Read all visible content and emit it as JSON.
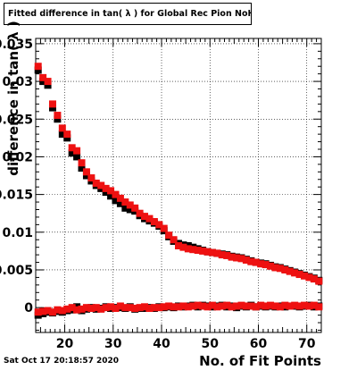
{
  "title": "Fitted difference in tan( λ ) for Global Rec Pion NoHits",
  "timestamp": "Sat Oct 17 20:18:57 2020",
  "chart_data": {
    "type": "scatter",
    "title": "Fitted difference in tan( λ ) for Global Rec Pion NoHits",
    "xlabel": "No. of Fit Points",
    "ylabel": "difference in tan( λ )",
    "xlim": [
      14,
      73
    ],
    "ylim": [
      -0.0033,
      0.0357
    ],
    "grid": true,
    "xticks": [
      20,
      30,
      40,
      50,
      60,
      70
    ],
    "yticks": [
      0,
      0.005,
      0.01,
      0.015,
      0.02,
      0.025,
      0.03,
      0.035
    ],
    "ytick_labels": [
      "0",
      "0.005",
      "0.01",
      "0.015",
      "0.02",
      "0.025",
      "0.03",
      "0.035"
    ],
    "series": [
      {
        "color": "#000000",
        "points": [
          [
            14.5,
            0.0315
          ],
          [
            15.5,
            0.03
          ],
          [
            16.5,
            0.0295
          ],
          [
            17.5,
            0.0265
          ],
          [
            18.5,
            0.025
          ],
          [
            19.5,
            0.023
          ],
          [
            20.5,
            0.0225
          ],
          [
            21.5,
            0.0205
          ],
          [
            22.5,
            0.02
          ],
          [
            23.5,
            0.0185
          ],
          [
            24.5,
            0.0175
          ],
          [
            25.5,
            0.0168
          ],
          [
            26.5,
            0.0162
          ],
          [
            27.5,
            0.0158
          ],
          [
            28.5,
            0.0153
          ],
          [
            29.5,
            0.0148
          ],
          [
            30.5,
            0.0142
          ],
          [
            31.5,
            0.0138
          ],
          [
            32.5,
            0.0132
          ],
          [
            33.5,
            0.013
          ],
          [
            34.5,
            0.0128
          ],
          [
            35.5,
            0.0122
          ],
          [
            36.5,
            0.0118
          ],
          [
            37.5,
            0.0115
          ],
          [
            38.5,
            0.0112
          ],
          [
            39.5,
            0.0108
          ],
          [
            40.5,
            0.0102
          ],
          [
            41.5,
            0.0094
          ],
          [
            42.5,
            0.0088
          ],
          [
            43.5,
            0.0085
          ],
          [
            44.5,
            0.0083
          ],
          [
            45.5,
            0.0082
          ],
          [
            46.5,
            0.008
          ],
          [
            47.5,
            0.0078
          ],
          [
            48.5,
            0.0076
          ],
          [
            49.5,
            0.0074
          ],
          [
            50.5,
            0.0073
          ],
          [
            51.5,
            0.0072
          ],
          [
            52.5,
            0.0071
          ],
          [
            53.5,
            0.007
          ],
          [
            54.5,
            0.0068
          ],
          [
            55.5,
            0.0067
          ],
          [
            56.5,
            0.0066
          ],
          [
            57.5,
            0.0064
          ],
          [
            58.5,
            0.0062
          ],
          [
            59.5,
            0.006
          ],
          [
            60.5,
            0.0059
          ],
          [
            61.5,
            0.0058
          ],
          [
            62.5,
            0.0056
          ],
          [
            63.5,
            0.0054
          ],
          [
            64.5,
            0.0053
          ],
          [
            65.5,
            0.0051
          ],
          [
            66.5,
            0.0049
          ],
          [
            67.5,
            0.0047
          ],
          [
            68.5,
            0.0045
          ],
          [
            69.5,
            0.0043
          ],
          [
            70.5,
            0.0041
          ],
          [
            71.5,
            0.0039
          ],
          [
            72.5,
            0.0036
          ]
        ]
      },
      {
        "color": "#ee1111",
        "points": [
          [
            14.5,
            0.032
          ],
          [
            15.5,
            0.0305
          ],
          [
            16.5,
            0.03
          ],
          [
            17.5,
            0.027
          ],
          [
            18.5,
            0.0255
          ],
          [
            19.5,
            0.0238
          ],
          [
            20.5,
            0.023
          ],
          [
            21.5,
            0.0212
          ],
          [
            22.5,
            0.0208
          ],
          [
            23.5,
            0.0192
          ],
          [
            24.5,
            0.018
          ],
          [
            25.5,
            0.0172
          ],
          [
            26.5,
            0.0165
          ],
          [
            27.5,
            0.0162
          ],
          [
            28.5,
            0.0158
          ],
          [
            29.5,
            0.0155
          ],
          [
            30.5,
            0.015
          ],
          [
            31.5,
            0.0145
          ],
          [
            32.5,
            0.014
          ],
          [
            33.5,
            0.0136
          ],
          [
            34.5,
            0.0132
          ],
          [
            35.5,
            0.0125
          ],
          [
            36.5,
            0.0121
          ],
          [
            37.5,
            0.0118
          ],
          [
            38.5,
            0.0114
          ],
          [
            39.5,
            0.011
          ],
          [
            40.5,
            0.0105
          ],
          [
            41.5,
            0.0096
          ],
          [
            42.5,
            0.009
          ],
          [
            43.5,
            0.0082
          ],
          [
            44.5,
            0.008
          ],
          [
            45.5,
            0.0078
          ],
          [
            46.5,
            0.0077
          ],
          [
            47.5,
            0.0076
          ],
          [
            48.5,
            0.0075
          ],
          [
            49.5,
            0.0074
          ],
          [
            50.5,
            0.0073
          ],
          [
            51.5,
            0.0072
          ],
          [
            52.5,
            0.007
          ],
          [
            53.5,
            0.0069
          ],
          [
            54.5,
            0.0067
          ],
          [
            55.5,
            0.0066
          ],
          [
            56.5,
            0.0065
          ],
          [
            57.5,
            0.0063
          ],
          [
            58.5,
            0.0061
          ],
          [
            59.5,
            0.006
          ],
          [
            60.5,
            0.0058
          ],
          [
            61.5,
            0.0057
          ],
          [
            62.5,
            0.0055
          ],
          [
            63.5,
            0.0053
          ],
          [
            64.5,
            0.0052
          ],
          [
            65.5,
            0.005
          ],
          [
            66.5,
            0.0048
          ],
          [
            67.5,
            0.0046
          ],
          [
            68.5,
            0.0044
          ],
          [
            69.5,
            0.0042
          ],
          [
            70.5,
            0.004
          ],
          [
            71.5,
            0.0038
          ],
          [
            72.5,
            0.0035
          ]
        ]
      },
      {
        "color": "#000000",
        "points": [
          [
            14.5,
            -0.001
          ],
          [
            15.5,
            -0.0008
          ],
          [
            16.5,
            -0.0006
          ],
          [
            17.5,
            -0.0007
          ],
          [
            18.5,
            -0.0005
          ],
          [
            19.5,
            -0.0006
          ],
          [
            20.5,
            -0.0004
          ],
          [
            21.5,
            -0.0003
          ],
          [
            22.5,
            0.0001
          ],
          [
            23.5,
            -0.0004
          ],
          [
            24.5,
            -0.0002
          ],
          [
            25.5,
            0.0
          ],
          [
            26.5,
            -0.0002
          ],
          [
            27.5,
            -0.0001
          ],
          [
            28.5,
            0.0001
          ],
          [
            29.5,
            -0.0001
          ],
          [
            30.5,
            0.0
          ],
          [
            31.5,
            0.0
          ],
          [
            32.5,
            -0.0001
          ],
          [
            33.5,
            0.0001
          ],
          [
            34.5,
            -0.0002
          ],
          [
            35.5,
            -0.0001
          ],
          [
            36.5,
            -0.0001
          ],
          [
            37.5,
            0.0
          ],
          [
            38.5,
            -0.0001
          ],
          [
            39.5,
            0.0001
          ],
          [
            40.5,
            0.0
          ],
          [
            41.5,
            0.0001
          ],
          [
            42.5,
            0.0
          ],
          [
            43.5,
            0.0002
          ],
          [
            44.5,
            0.0001
          ],
          [
            45.5,
            0.0002
          ],
          [
            46.5,
            0.0003
          ],
          [
            47.5,
            0.0001
          ],
          [
            48.5,
            0.0003
          ],
          [
            49.5,
            0.0002
          ],
          [
            50.5,
            0.0001
          ],
          [
            51.5,
            0.0002
          ],
          [
            52.5,
            0.0003
          ],
          [
            53.5,
            0.0001
          ],
          [
            54.5,
            0.0002
          ],
          [
            55.5,
            0.0
          ],
          [
            56.5,
            0.0002
          ],
          [
            57.5,
            0.0001
          ],
          [
            58.5,
            0.0003
          ],
          [
            59.5,
            0.0001
          ],
          [
            60.5,
            0.0002
          ],
          [
            61.5,
            0.0001
          ],
          [
            62.5,
            0.0002
          ],
          [
            63.5,
            0.0001
          ],
          [
            64.5,
            0.0002
          ],
          [
            65.5,
            0.0001
          ],
          [
            66.5,
            0.0002
          ],
          [
            67.5,
            0.0002
          ],
          [
            68.5,
            0.0001
          ],
          [
            69.5,
            0.0002
          ],
          [
            70.5,
            0.0003
          ],
          [
            71.5,
            0.0001
          ],
          [
            72.5,
            0.0002
          ]
        ]
      },
      {
        "color": "#ee1111",
        "points": [
          [
            14.5,
            -0.0006
          ],
          [
            15.5,
            -0.0005
          ],
          [
            16.5,
            -0.0004
          ],
          [
            17.5,
            -0.0006
          ],
          [
            18.5,
            -0.0003
          ],
          [
            19.5,
            -0.0004
          ],
          [
            20.5,
            -0.0002
          ],
          [
            21.5,
            0.0
          ],
          [
            22.5,
            -0.0003
          ],
          [
            23.5,
            -0.0002
          ],
          [
            24.5,
            0.0
          ],
          [
            25.5,
            -0.0001
          ],
          [
            26.5,
            0.0
          ],
          [
            27.5,
            -0.0002
          ],
          [
            28.5,
            0.0
          ],
          [
            29.5,
            0.0001
          ],
          [
            30.5,
            -0.0001
          ],
          [
            31.5,
            0.0002
          ],
          [
            32.5,
            0.0
          ],
          [
            33.5,
            0.0
          ],
          [
            34.5,
            -0.0001
          ],
          [
            35.5,
            0.0
          ],
          [
            36.5,
            0.0001
          ],
          [
            37.5,
            -0.0001
          ],
          [
            38.5,
            0.0
          ],
          [
            39.5,
            0.0
          ],
          [
            40.5,
            0.0001
          ],
          [
            41.5,
            0.0002
          ],
          [
            42.5,
            0.0001
          ],
          [
            43.5,
            0.0001
          ],
          [
            44.5,
            0.0002
          ],
          [
            45.5,
            0.0001
          ],
          [
            46.5,
            0.0002
          ],
          [
            47.5,
            0.0003
          ],
          [
            48.5,
            0.0002
          ],
          [
            49.5,
            0.0001
          ],
          [
            50.5,
            0.0003
          ],
          [
            51.5,
            0.0001
          ],
          [
            52.5,
            0.0002
          ],
          [
            53.5,
            0.0003
          ],
          [
            54.5,
            0.0001
          ],
          [
            55.5,
            0.0002
          ],
          [
            56.5,
            0.0003
          ],
          [
            57.5,
            0.0002
          ],
          [
            58.5,
            0.0002
          ],
          [
            59.5,
            0.0001
          ],
          [
            60.5,
            0.0003
          ],
          [
            61.5,
            0.0002
          ],
          [
            62.5,
            0.0003
          ],
          [
            63.5,
            0.0002
          ],
          [
            64.5,
            0.0001
          ],
          [
            65.5,
            0.0003
          ],
          [
            66.5,
            0.0002
          ],
          [
            67.5,
            0.0003
          ],
          [
            68.5,
            0.0002
          ],
          [
            69.5,
            0.0003
          ],
          [
            70.5,
            0.0002
          ],
          [
            71.5,
            0.0003
          ],
          [
            72.5,
            0.0001
          ]
        ]
      }
    ]
  }
}
